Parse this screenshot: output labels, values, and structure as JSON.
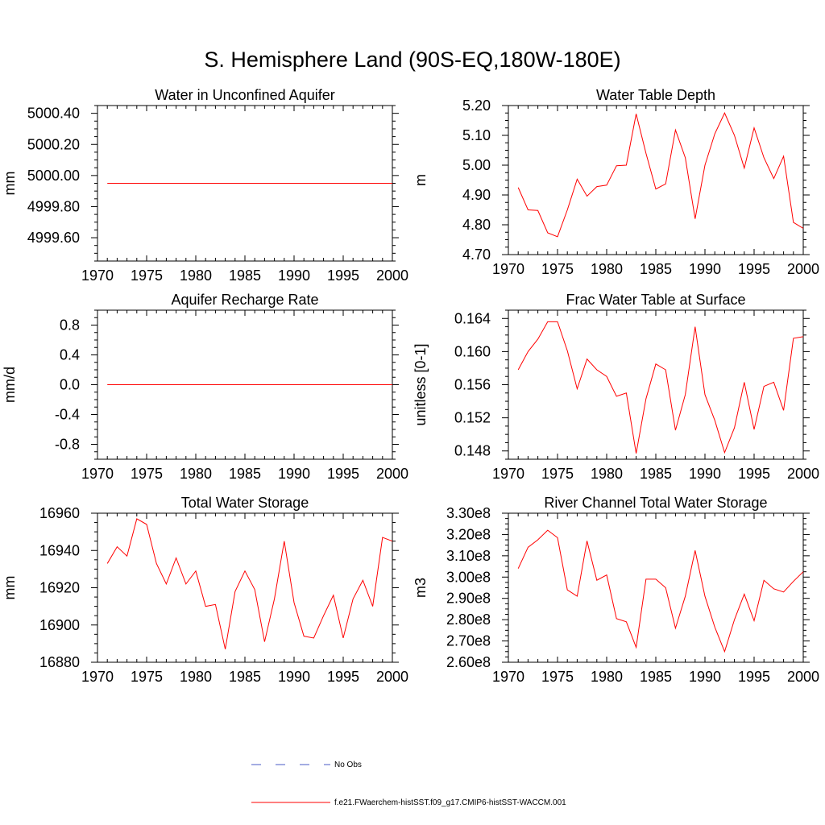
{
  "figure": {
    "title": "S. Hemisphere Land (90S-EQ,180W-180E)",
    "line_color": "#ff0000",
    "obs_color": "#4a5bc4"
  },
  "legend": {
    "obs_label": "No Obs",
    "model_label": "f.e21.FWaerchem-histSST.f09_g17.CMIP6-histSST-WACCM.001"
  },
  "chart_data": [
    {
      "type": "line",
      "title": "Water in Unconfined Aquifer",
      "ylabel": "mm",
      "xlim": [
        1970,
        2000
      ],
      "ylim": [
        4999.45,
        5000.45
      ],
      "xticks": [
        1970,
        1975,
        1980,
        1985,
        1990,
        1995,
        2000
      ],
      "yticks": [
        4999.6,
        4999.8,
        5000.0,
        5000.2,
        5000.4
      ],
      "ytick_labels": [
        "4999.60",
        "4999.80",
        "5000.00",
        "5000.20",
        "5000.40"
      ],
      "yminor": 0.05,
      "x": [
        1971,
        2000
      ],
      "values": [
        4999.95,
        4999.95
      ]
    },
    {
      "type": "line",
      "title": "Water Table Depth",
      "ylabel": "m",
      "xlim": [
        1970,
        2000
      ],
      "ylim": [
        4.7,
        5.2
      ],
      "xticks": [
        1970,
        1975,
        1980,
        1985,
        1990,
        1995,
        2000
      ],
      "yticks": [
        4.7,
        4.8,
        4.9,
        5.0,
        5.1,
        5.2
      ],
      "ytick_labels": [
        "4.70",
        "4.80",
        "4.90",
        "5.00",
        "5.10",
        "5.20"
      ],
      "yminor": 0.025,
      "x": [
        1971,
        1972,
        1973,
        1974,
        1975,
        1976,
        1977,
        1978,
        1979,
        1980,
        1981,
        1982,
        1983,
        1984,
        1985,
        1986,
        1987,
        1988,
        1989,
        1990,
        1991,
        1992,
        1993,
        1994,
        1995,
        1996,
        1997,
        1998,
        1999,
        2000
      ],
      "values": [
        4.925,
        4.85,
        4.848,
        4.773,
        4.76,
        4.85,
        4.953,
        4.896,
        4.928,
        4.933,
        4.998,
        5.0,
        5.172,
        5.04,
        4.92,
        4.937,
        5.118,
        5.025,
        4.82,
        5.0,
        5.105,
        5.175,
        5.1,
        4.99,
        5.125,
        5.025,
        4.955,
        5.03,
        4.808,
        4.788
      ]
    },
    {
      "type": "line",
      "title": "Aquifer Recharge Rate",
      "ylabel": "mm/d",
      "xlim": [
        1970,
        2000
      ],
      "ylim": [
        -1.0,
        1.0
      ],
      "xticks": [
        1970,
        1975,
        1980,
        1985,
        1990,
        1995,
        2000
      ],
      "yticks": [
        -0.8,
        -0.4,
        0.0,
        0.4,
        0.8
      ],
      "ytick_labels": [
        "-0.8",
        "-0.4",
        "0.0",
        "0.4",
        "0.8"
      ],
      "yminor": 0.1,
      "x": [
        1971,
        2000
      ],
      "values": [
        0.0,
        0.0
      ]
    },
    {
      "type": "line",
      "title": "Frac Water Table at Surface",
      "ylabel": "unitless [0-1]",
      "xlim": [
        1970,
        2000
      ],
      "ylim": [
        0.147,
        0.165
      ],
      "xticks": [
        1970,
        1975,
        1980,
        1985,
        1990,
        1995,
        2000
      ],
      "yticks": [
        0.148,
        0.152,
        0.156,
        0.16,
        0.164
      ],
      "ytick_labels": [
        "0.148",
        "0.152",
        "0.156",
        "0.160",
        "0.164"
      ],
      "yminor": 0.001,
      "x": [
        1971,
        1972,
        1973,
        1974,
        1975,
        1976,
        1977,
        1978,
        1979,
        1980,
        1981,
        1982,
        1983,
        1984,
        1985,
        1986,
        1987,
        1988,
        1989,
        1990,
        1991,
        1992,
        1993,
        1994,
        1995,
        1996,
        1997,
        1998,
        1999,
        2000
      ],
      "values": [
        0.1578,
        0.16,
        0.1615,
        0.1636,
        0.1636,
        0.1601,
        0.1555,
        0.1591,
        0.1578,
        0.157,
        0.1546,
        0.155,
        0.1477,
        0.1543,
        0.1585,
        0.1578,
        0.1505,
        0.1548,
        0.163,
        0.1548,
        0.1517,
        0.1478,
        0.1508,
        0.1563,
        0.1506,
        0.1558,
        0.1563,
        0.1529,
        0.1616,
        0.1618
      ]
    },
    {
      "type": "line",
      "title": "Total Water Storage",
      "ylabel": "mm",
      "xlim": [
        1970,
        2000
      ],
      "ylim": [
        16880,
        16960
      ],
      "xticks": [
        1970,
        1975,
        1980,
        1985,
        1990,
        1995,
        2000
      ],
      "yticks": [
        16880,
        16900,
        16920,
        16940,
        16960
      ],
      "ytick_labels": [
        "16880",
        "16900",
        "16920",
        "16940",
        "16960"
      ],
      "yminor": 5,
      "x": [
        1971,
        1972,
        1973,
        1974,
        1975,
        1976,
        1977,
        1978,
        1979,
        1980,
        1981,
        1982,
        1983,
        1984,
        1985,
        1986,
        1987,
        1988,
        1989,
        1990,
        1991,
        1992,
        1993,
        1994,
        1995,
        1996,
        1997,
        1998,
        1999,
        2000
      ],
      "values": [
        16933,
        16942,
        16937,
        16957,
        16954,
        16933,
        16922,
        16936,
        16922,
        16929,
        16910,
        16911,
        16887,
        16918,
        16929,
        16919,
        16891,
        16914,
        16945,
        16912,
        16894,
        16893,
        16905,
        16916,
        16893,
        16914,
        16924,
        16910,
        16947,
        16945
      ]
    },
    {
      "type": "line",
      "title": "River Channel Total Water Storage",
      "ylabel": "m3",
      "xlim": [
        1970,
        2000
      ],
      "ylim": [
        260000000,
        330000000
      ],
      "xticks": [
        1970,
        1975,
        1980,
        1985,
        1990,
        1995,
        2000
      ],
      "yticks": [
        260000000,
        270000000,
        280000000,
        290000000,
        300000000,
        310000000,
        320000000,
        330000000
      ],
      "ytick_labels": [
        "2.60e8",
        "2.70e8",
        "2.80e8",
        "2.90e8",
        "3.00e8",
        "3.10e8",
        "3.20e8",
        "3.30e8"
      ],
      "yminor": 2500000,
      "x": [
        1971,
        1972,
        1973,
        1974,
        1975,
        1976,
        1977,
        1978,
        1979,
        1980,
        1981,
        1982,
        1983,
        1984,
        1985,
        1986,
        1987,
        1988,
        1989,
        1990,
        1991,
        1992,
        1993,
        1994,
        1995,
        1996,
        1997,
        1998,
        1999,
        2000
      ],
      "values": [
        304000000,
        314000000,
        317500000,
        322000000,
        318500000,
        294000000,
        291000000,
        317000000,
        298500000,
        301000000,
        280500000,
        279000000,
        267000000,
        299000000,
        299000000,
        295000000,
        276000000,
        291000000,
        312500000,
        291000000,
        276500000,
        265000000,
        280000000,
        292000000,
        279500000,
        298500000,
        294500000,
        293000000,
        298000000,
        302500000
      ]
    }
  ]
}
